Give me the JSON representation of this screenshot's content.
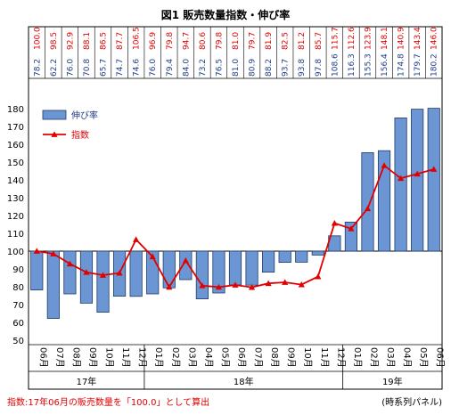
{
  "chart_data": {
    "type": "bar+line",
    "title": "図1 販売数量指数・伸び率",
    "categories": [
      "06月",
      "07月",
      "08月",
      "09月",
      "10月",
      "11月",
      "12月",
      "01月",
      "02月",
      "03月",
      "04月",
      "05月",
      "06月",
      "07月",
      "08月",
      "09月",
      "10月",
      "11月",
      "12月",
      "01月",
      "02月",
      "03月",
      "04月",
      "05月",
      "06月"
    ],
    "year_groups": [
      {
        "label": "17年",
        "start": 0,
        "end": 6
      },
      {
        "label": "18年",
        "start": 7,
        "end": 18
      },
      {
        "label": "19年",
        "start": 19,
        "end": 24
      }
    ],
    "series": [
      {
        "name": "伸び率",
        "kind": "bar",
        "color": "#6b96d3",
        "values": [
          78.2,
          62.2,
          76.0,
          70.8,
          65.7,
          74.7,
          74.6,
          76.0,
          79.4,
          84.0,
          73.2,
          76.5,
          81.0,
          80.9,
          88.2,
          93.7,
          93.8,
          97.8,
          108.6,
          116.3,
          155.3,
          156.4,
          174.8,
          179.7,
          180.2
        ]
      },
      {
        "name": "指数",
        "kind": "line",
        "color": "#e00000",
        "values": [
          100.0,
          98.5,
          92.9,
          88.1,
          86.5,
          87.7,
          106.5,
          96.9,
          79.8,
          94.7,
          80.6,
          79.8,
          81.0,
          79.7,
          81.9,
          82.5,
          81.2,
          85.7,
          115.7,
          112.6,
          123.9,
          148.1,
          140.9,
          143.4,
          146.0
        ]
      }
    ],
    "top_labels": [
      [
        "78.2",
        "100.0"
      ],
      [
        "62.2",
        "98.5"
      ],
      [
        "76.0",
        "92.9"
      ],
      [
        "70.8",
        "88.1"
      ],
      [
        "65.7",
        "86.5"
      ],
      [
        "74.7",
        "87.7"
      ],
      [
        "74.6",
        "106.5"
      ],
      [
        "76.0",
        "96.9"
      ],
      [
        "79.4",
        "79.8"
      ],
      [
        "84.0",
        "94.7"
      ],
      [
        "73.2",
        "80.6"
      ],
      [
        "76.5",
        "79.8"
      ],
      [
        "81.0",
        "81.0"
      ],
      [
        "80.9",
        "79.7"
      ],
      [
        "88.2",
        "81.9"
      ],
      [
        "93.7",
        "82.5"
      ],
      [
        "93.8",
        "81.2"
      ],
      [
        "97.8",
        "85.7"
      ],
      [
        "108.6",
        "115.7"
      ],
      [
        "116.3",
        "112.6"
      ],
      [
        "155.3",
        "123.9"
      ],
      [
        "156.4",
        "148.1"
      ],
      [
        "174.8",
        "140.9"
      ],
      [
        "179.7",
        "143.4"
      ],
      [
        "180.2",
        "146.0"
      ]
    ],
    "ylim": [
      50,
      180
    ],
    "yticks": [
      50,
      60,
      70,
      80,
      90,
      100,
      110,
      120,
      130,
      140,
      150,
      160,
      170,
      180
    ],
    "baseline": 100,
    "grid": false,
    "legend_position": "top-left"
  },
  "footnote": "指数:17年06月の販売数量を「100.0」として算出",
  "source": "(時系列パネル)"
}
